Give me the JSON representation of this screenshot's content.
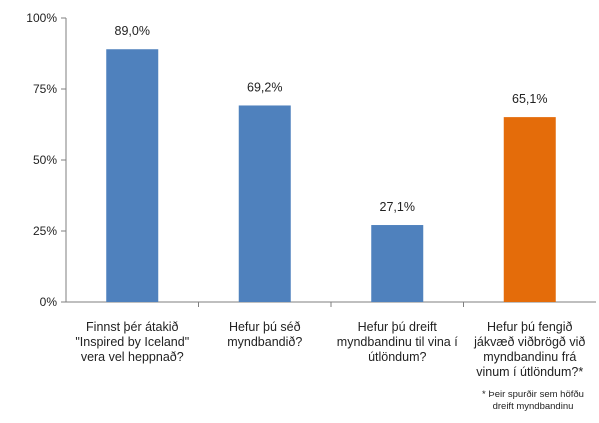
{
  "chart_data": {
    "type": "bar",
    "categories": [
      "Finnst þér átakið \"Inspired by Iceland\" vera vel heppnað?",
      "Hefur þú séð myndbandið?",
      "Hefur þú dreift myndbandinu til vina í útlöndum?",
      "Hefur þú fengið jákvæð viðbrögð við myndbandinu frá vinum í útlöndum?*"
    ],
    "category_lines": [
      [
        "Finnst þér átakið",
        "\"Inspired by Iceland\"",
        "vera vel heppnað?"
      ],
      [
        "Hefur þú séð",
        "myndbandið?"
      ],
      [
        "Hefur þú dreift",
        "myndbandinu til vina í",
        "útlöndum?"
      ],
      [
        "Hefur þú fengið",
        "jákvæð viðbrögð við",
        "myndbandinu frá",
        "vinum í útlöndum?*"
      ]
    ],
    "values": [
      89.0,
      69.2,
      27.1,
      65.1
    ],
    "data_labels": [
      "89,0%",
      "69,2%",
      "27,1%",
      "65,1%"
    ],
    "colors": [
      "#4f81bd",
      "#4f81bd",
      "#4f81bd",
      "#e46c0a"
    ],
    "ylim": [
      0,
      100
    ],
    "yticks": [
      0,
      25,
      50,
      75,
      100
    ],
    "ytick_labels": [
      "0%",
      "25%",
      "50%",
      "75%",
      "100%"
    ],
    "grid": false,
    "title": "",
    "xlabel": "",
    "ylabel": "",
    "footnote": [
      "* Þeir spurðir sem höfðu",
      "dreift myndbandinu"
    ]
  }
}
